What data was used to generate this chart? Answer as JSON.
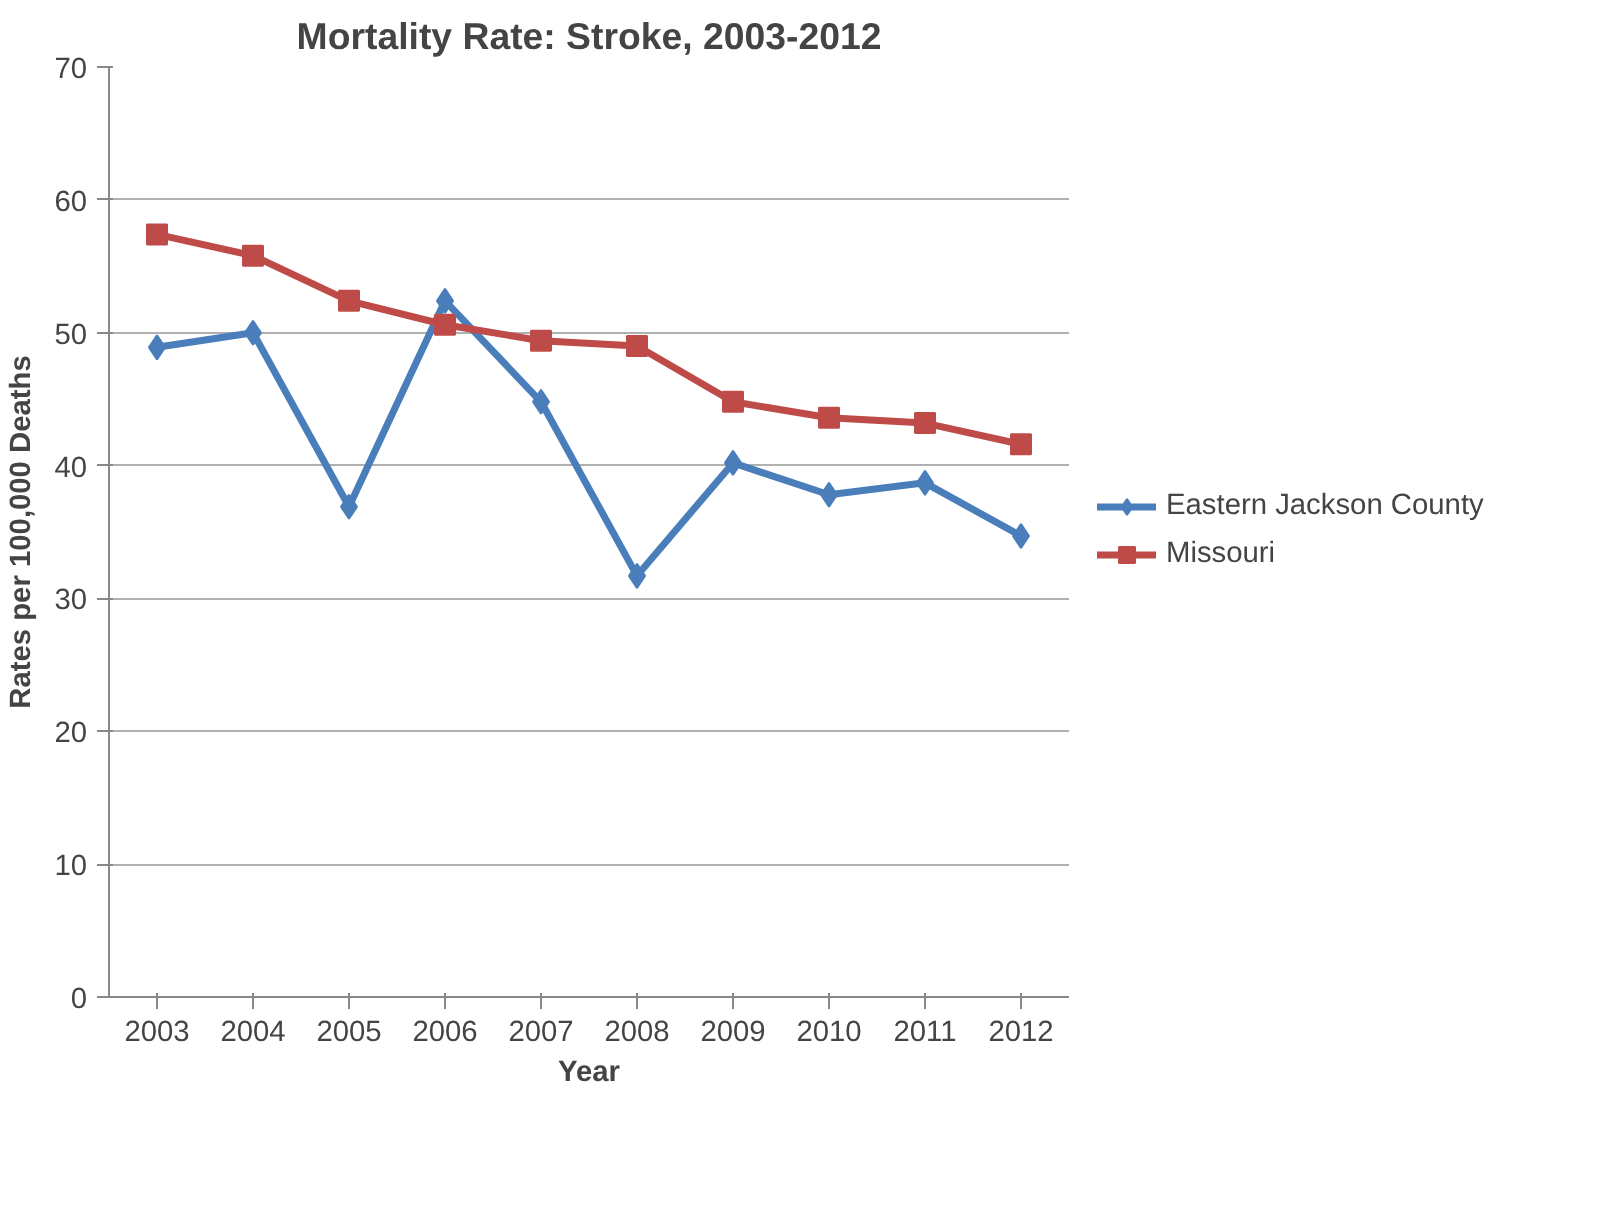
{
  "chart_data": {
    "type": "line",
    "title": "Mortality Rate: Stroke, 2003-2012",
    "xlabel": "Year",
    "ylabel": "Rates per 100,000 Deaths",
    "categories": [
      "2003",
      "2004",
      "2005",
      "2006",
      "2007",
      "2008",
      "2009",
      "2010",
      "2011",
      "2012"
    ],
    "series": [
      {
        "name": "Eastern Jackson County",
        "color": "#4a7ebb",
        "marker": "diamond",
        "values": [
          48.9,
          50.0,
          36.9,
          52.4,
          44.8,
          31.7,
          40.2,
          37.8,
          38.7,
          34.7
        ]
      },
      {
        "name": "Missouri",
        "color": "#be4b48",
        "marker": "square",
        "values": [
          57.4,
          55.8,
          52.4,
          50.6,
          49.4,
          49.0,
          44.8,
          43.6,
          43.2,
          41.6
        ]
      }
    ],
    "ylim": [
      0,
      70
    ],
    "yticks": [
      0,
      10,
      20,
      30,
      40,
      50,
      60,
      70
    ],
    "grid": "y",
    "legend": "right"
  }
}
